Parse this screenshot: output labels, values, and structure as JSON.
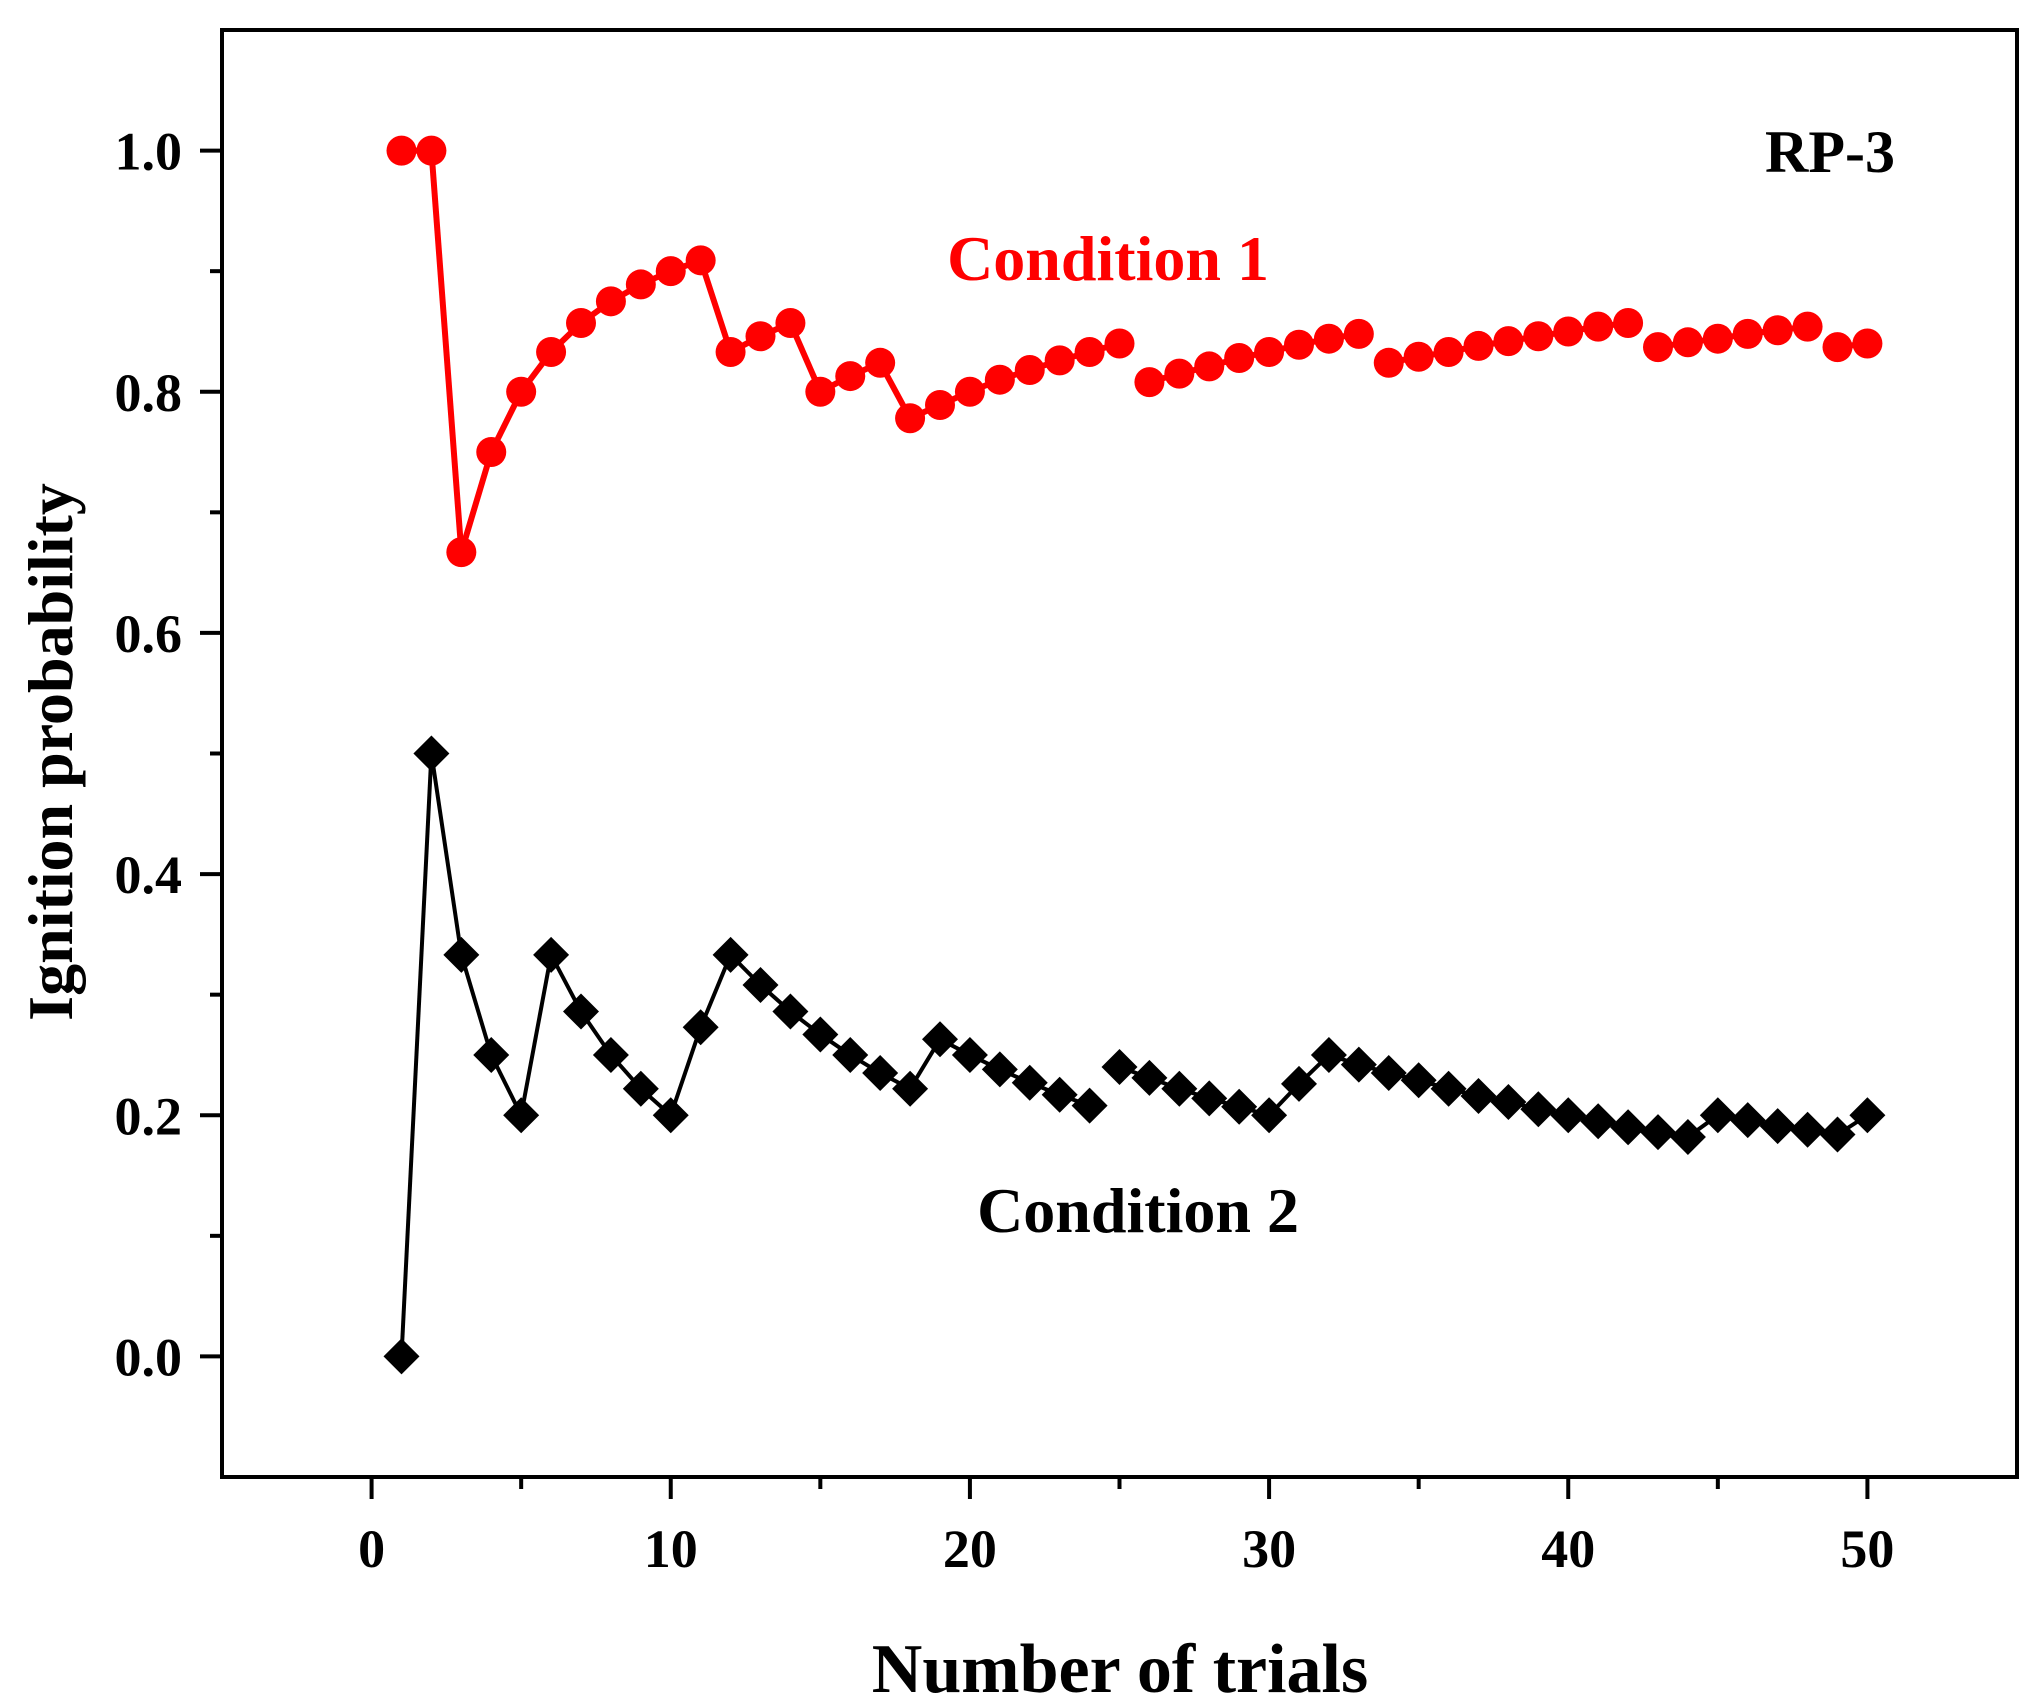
{
  "chart_data": {
    "type": "scatter",
    "title": "",
    "label": "RP-3",
    "xlabel": "Number of trials",
    "ylabel": "Ignition probability",
    "xlim": [
      -5,
      55
    ],
    "ylim": [
      -0.1,
      1.1
    ],
    "x_ticks": [
      0,
      10,
      20,
      30,
      40,
      50
    ],
    "x_tick_labels": [
      "0",
      "10",
      "20",
      "30",
      "40",
      "50"
    ],
    "x_minor_ticks": [
      5,
      15,
      25,
      35,
      45
    ],
    "y_ticks": [
      0.0,
      0.2,
      0.4,
      0.6,
      0.8,
      1.0
    ],
    "y_tick_labels": [
      "0.0",
      "0.2",
      "0.4",
      "0.6",
      "0.8",
      "1.0"
    ],
    "y_minor_ticks": [
      0.1,
      0.3,
      0.5,
      0.7,
      0.9
    ],
    "grid": false,
    "series": [
      {
        "name": "Condition 1",
        "color": "#ff0000",
        "marker": "circle",
        "x": [
          1,
          2,
          3,
          4,
          5,
          6,
          7,
          8,
          9,
          10,
          11,
          12,
          13,
          14,
          15,
          16,
          17,
          18,
          19,
          20,
          21,
          22,
          23,
          24,
          25,
          26,
          27,
          28,
          29,
          30,
          31,
          32,
          33,
          34,
          35,
          36,
          37,
          38,
          39,
          40,
          41,
          42,
          43,
          44,
          45,
          46,
          47,
          48,
          49,
          50
        ],
        "values": [
          1.0,
          1.0,
          0.667,
          0.75,
          0.8,
          0.833,
          0.857,
          0.875,
          0.889,
          0.9,
          0.909,
          0.833,
          0.846,
          0.857,
          0.8,
          0.813,
          0.824,
          0.778,
          0.789,
          0.8,
          0.81,
          0.818,
          0.826,
          0.833,
          0.84,
          0.808,
          0.815,
          0.821,
          0.828,
          0.833,
          0.839,
          0.844,
          0.848,
          0.824,
          0.829,
          0.833,
          0.838,
          0.842,
          0.846,
          0.85,
          0.854,
          0.857,
          0.837,
          0.841,
          0.844,
          0.848,
          0.851,
          0.854,
          0.837,
          0.84
        ],
        "connected_to_next": [
          true,
          true,
          true,
          true,
          true,
          true,
          true,
          true,
          true,
          true,
          true,
          true,
          true,
          true,
          true,
          true,
          true,
          true,
          true,
          true,
          true,
          true,
          true,
          true,
          false,
          true,
          true,
          true,
          true,
          true,
          true,
          true,
          false,
          true,
          true,
          true,
          true,
          true,
          true,
          true,
          true,
          false,
          true,
          true,
          true,
          true,
          true,
          false,
          true,
          false
        ]
      },
      {
        "name": "Condition 2",
        "color": "#000000",
        "marker": "diamond",
        "x": [
          1,
          2,
          3,
          4,
          5,
          6,
          7,
          8,
          9,
          10,
          11,
          12,
          13,
          14,
          15,
          16,
          17,
          18,
          19,
          20,
          21,
          22,
          23,
          24,
          25,
          26,
          27,
          28,
          29,
          30,
          31,
          32,
          33,
          34,
          35,
          36,
          37,
          38,
          39,
          40,
          41,
          42,
          43,
          44,
          45,
          46,
          47,
          48,
          49,
          50
        ],
        "values": [
          0.0,
          0.5,
          0.333,
          0.25,
          0.2,
          0.333,
          0.286,
          0.25,
          0.222,
          0.2,
          0.273,
          0.333,
          0.308,
          0.286,
          0.267,
          0.25,
          0.235,
          0.222,
          0.263,
          0.25,
          0.238,
          0.227,
          0.217,
          0.208,
          0.24,
          0.231,
          0.222,
          0.214,
          0.207,
          0.2,
          0.226,
          0.25,
          0.242,
          0.235,
          0.229,
          0.222,
          0.216,
          0.211,
          0.205,
          0.2,
          0.195,
          0.19,
          0.186,
          0.182,
          0.2,
          0.196,
          0.191,
          0.188,
          0.184,
          0.2
        ],
        "connected_to_next": [
          true,
          true,
          true,
          true,
          true,
          true,
          true,
          true,
          true,
          true,
          true,
          true,
          true,
          true,
          true,
          true,
          true,
          true,
          true,
          true,
          true,
          true,
          true,
          false,
          true,
          true,
          true,
          true,
          true,
          true,
          true,
          true,
          true,
          true,
          true,
          true,
          true,
          true,
          true,
          true,
          true,
          true,
          true,
          true,
          true,
          true,
          true,
          true,
          true,
          false
        ]
      }
    ],
    "annotations": [
      {
        "text": "Condition 1",
        "color": "#ff0000"
      },
      {
        "text": "Condition 2",
        "color": "#000000"
      }
    ]
  }
}
